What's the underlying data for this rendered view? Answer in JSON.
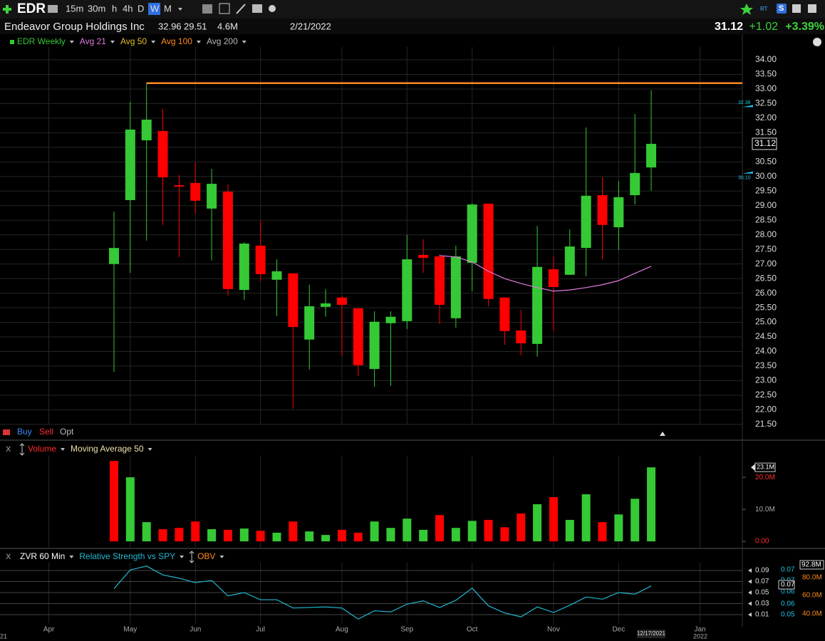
{
  "toolbar": {
    "symbol": "EDR",
    "timeframes": [
      "15m",
      "30m",
      "h",
      "4h",
      "D",
      "W",
      "M"
    ],
    "active": 5,
    "right": [
      "RT",
      "S"
    ]
  },
  "quote": {
    "name": "Endeavor Group Holdings Inc",
    "high": "32.96",
    "low": "29.51",
    "volume": "4.6M",
    "date": "2/21/2022",
    "last": "31.12",
    "change": "+1.02",
    "change_pct": "+3.39%"
  },
  "order_bar": [
    "Buy",
    "Sell",
    "Opt"
  ],
  "panel_close": "X",
  "x_annotations": {
    "left": "21",
    "year": "2022",
    "cursor_date": "12/17/2021"
  },
  "chart_data": [
    {
      "type": "candlestick",
      "name": "EDR Weekly",
      "up_color": "#35c935",
      "down_color": "#ff0000",
      "open": [
        null,
        null,
        null,
        null,
        27.0,
        29.19,
        31.24,
        31.56,
        29.7,
        29.78,
        28.9,
        29.48,
        26.11,
        27.63,
        26.46,
        26.68,
        24.41,
        25.53,
        25.85,
        25.48,
        23.4,
        24.97,
        25.04,
        27.31,
        27.26,
        25.14,
        27.04,
        29.07,
        25.85,
        24.72,
        24.26,
        26.82,
        26.63,
        27.55,
        29.36,
        28.26,
        29.36,
        30.31,
        null,
        null,
        null
      ],
      "high": [
        null,
        null,
        null,
        null,
        28.8,
        32.56,
        33.2,
        32.32,
        30.05,
        30.48,
        30.26,
        29.73,
        27.75,
        28.48,
        27.16,
        26.68,
        26.29,
        26.14,
        25.9,
        25.48,
        25.38,
        25.38,
        28.0,
        27.85,
        27.33,
        27.63,
        29.09,
        29.07,
        25.85,
        25.43,
        28.31,
        27.26,
        28.19,
        31.68,
        29.97,
        29.85,
        32.14,
        32.96,
        null,
        null,
        null
      ],
      "low": [
        null,
        null,
        null,
        null,
        23.3,
        26.7,
        27.8,
        28.34,
        27.24,
        28.73,
        27.12,
        25.92,
        25.77,
        26.41,
        25.21,
        22.04,
        23.38,
        25.19,
        23.84,
        23.16,
        22.79,
        22.82,
        24.77,
        26.7,
        24.94,
        24.82,
        26.07,
        25.55,
        24.23,
        23.87,
        23.82,
        24.7,
        26.63,
        26.58,
        27.16,
        27.48,
        29.04,
        29.51,
        null,
        null,
        null
      ],
      "close": [
        null,
        null,
        null,
        null,
        27.55,
        31.61,
        31.95,
        29.97,
        29.68,
        29.17,
        29.75,
        26.14,
        27.7,
        26.65,
        26.75,
        24.84,
        25.55,
        25.65,
        25.6,
        23.53,
        25.02,
        25.19,
        27.16,
        27.21,
        25.6,
        27.26,
        29.04,
        25.8,
        24.7,
        24.28,
        26.9,
        26.21,
        27.6,
        29.34,
        28.34,
        29.29,
        30.12,
        31.12,
        null,
        null,
        null
      ],
      "overlays": [
        {
          "name": "Avg 21",
          "color": "#e07be0",
          "values": [
            null,
            null,
            null,
            null,
            null,
            null,
            null,
            null,
            null,
            null,
            null,
            null,
            null,
            null,
            null,
            null,
            null,
            null,
            null,
            null,
            null,
            null,
            null,
            null,
            27.29,
            27.24,
            27.07,
            26.75,
            26.5,
            26.33,
            26.19,
            26.07,
            26.11,
            26.19,
            26.29,
            26.43,
            26.68,
            26.92,
            null,
            null,
            null
          ]
        },
        {
          "name": "Avg 50",
          "color": "#e3c02a"
        },
        {
          "name": "Avg 100",
          "color": "#ff8a1c",
          "level": 33.2
        },
        {
          "name": "Avg 200",
          "color": "#b8b8b8"
        }
      ],
      "ylim": [
        20.96,
        34.44
      ],
      "yticks": [
        {
          "value": 21.5,
          "label": "21.50"
        },
        {
          "value": 22,
          "label": "22.00"
        },
        {
          "value": 22.5,
          "label": "22.50"
        },
        {
          "value": 23,
          "label": "23.00"
        },
        {
          "value": 23.5,
          "label": "23.50"
        },
        {
          "value": 24,
          "label": "24.00"
        },
        {
          "value": 24.5,
          "label": "24.50"
        },
        {
          "value": 25,
          "label": "25.00"
        },
        {
          "value": 25.5,
          "label": "25.50"
        },
        {
          "value": 26,
          "label": "26.00"
        },
        {
          "value": 26.5,
          "label": "26.50"
        },
        {
          "value": 27,
          "label": "27.00"
        },
        {
          "value": 27.5,
          "label": "27.50"
        },
        {
          "value": 28,
          "label": "28.00"
        },
        {
          "value": 28.5,
          "label": "28.50"
        },
        {
          "value": 29,
          "label": "29.00"
        },
        {
          "value": 29.5,
          "label": "29.50"
        },
        {
          "value": 30,
          "label": "30.00"
        },
        {
          "value": 30.5,
          "label": "30.50"
        },
        {
          "value": 31,
          "label": "31.00"
        },
        {
          "value": 31.5,
          "label": "31.50"
        },
        {
          "value": 32,
          "label": "32.00"
        },
        {
          "value": 32.5,
          "label": "32.50"
        },
        {
          "value": 33,
          "label": "33.00"
        },
        {
          "value": 33.5,
          "label": "33.50"
        },
        {
          "value": 34,
          "label": "34.00"
        }
      ],
      "price_tags": [
        {
          "value": 32.38,
          "label": "32.38"
        },
        {
          "value": 30.1,
          "label": "30.10"
        }
      ],
      "last_price": {
        "value": 31.12,
        "label": "31.12"
      },
      "grid": true
    },
    {
      "type": "bar",
      "name": "Volume",
      "name_color": "#ff2a2a",
      "average_name": "Moving Average 50",
      "values": [
        null,
        null,
        null,
        null,
        25.1,
        20.0,
        6.0,
        3.8,
        4.2,
        6.2,
        3.8,
        3.6,
        4.0,
        3.3,
        2.7,
        6.2,
        3.1,
        2.0,
        3.6,
        2.7,
        6.2,
        4.2,
        7.1,
        3.6,
        8.2,
        4.2,
        6.4,
        6.7,
        4.4,
        8.7,
        11.6,
        13.8,
        6.7,
        14.7,
        6.0,
        8.4,
        13.3,
        23.1,
        null,
        null,
        null
      ],
      "colors": [
        null,
        null,
        null,
        null,
        "#ff0000",
        "#35c935",
        "#35c935",
        "#ff0000",
        "#ff0000",
        "#ff0000",
        "#35c935",
        "#ff0000",
        "#35c935",
        "#ff0000",
        "#35c935",
        "#ff0000",
        "#35c935",
        "#35c935",
        "#ff0000",
        "#ff0000",
        "#35c935",
        "#35c935",
        "#35c935",
        "#35c935",
        "#ff0000",
        "#35c935",
        "#35c935",
        "#ff0000",
        "#ff0000",
        "#ff0000",
        "#35c935",
        "#ff0000",
        "#35c935",
        "#35c935",
        "#ff0000",
        "#35c935",
        "#35c935",
        "#35c935",
        null,
        null,
        null
      ],
      "ylim": [
        -2.2,
        30.7
      ],
      "yticks": [
        {
          "value": 0,
          "label": "0.00"
        },
        {
          "value": 10,
          "label": "10.0M"
        },
        {
          "value": 20,
          "label": "20.0M"
        }
      ],
      "last_tag": {
        "value": 23.1,
        "label": "23.1M"
      }
    },
    {
      "type": "line",
      "categories": [
        "Apr",
        null,
        null,
        null,
        null,
        "May",
        null,
        null,
        null,
        "Jun",
        null,
        null,
        null,
        "Jul",
        null,
        null,
        null,
        null,
        "Aug",
        null,
        null,
        null,
        "Sep",
        null,
        null,
        null,
        "Oct",
        null,
        null,
        null,
        null,
        "Nov",
        null,
        null,
        null,
        "Dec",
        null,
        null,
        null,
        null,
        "Jan"
      ],
      "series": [
        {
          "name": "ZVR 60 Min",
          "color": "#ffffff"
        },
        {
          "name": "Relative Strength vs SPY",
          "color": "#22b8cf",
          "values": [
            null,
            null,
            null,
            null,
            0.057,
            0.091,
            0.098,
            0.082,
            0.076,
            0.068,
            0.072,
            0.044,
            0.05,
            0.037,
            0.037,
            0.022,
            0.023,
            0.024,
            0.022,
            0.002,
            0.017,
            0.015,
            0.029,
            0.035,
            0.023,
            0.036,
            0.058,
            0.026,
            0.013,
            0.006,
            0.024,
            0.014,
            0.027,
            0.042,
            0.038,
            0.05,
            0.047,
            0.062,
            null,
            null,
            null
          ]
        },
        {
          "name": "OBV",
          "color": "#ff8a1c"
        }
      ],
      "ylim": [
        -0.0055,
        0.1042
      ],
      "yticks": [
        0.01,
        0.03,
        0.05,
        0.07,
        0.09
      ],
      "rs_labels": [
        "0.07",
        "0.07",
        "0.06",
        "0.06",
        "0.05"
      ],
      "rs_tag": "0.07",
      "obv_labels": [
        "80.0M",
        "60.0M",
        "40.0M"
      ],
      "obv_tag": "92.8M"
    }
  ]
}
